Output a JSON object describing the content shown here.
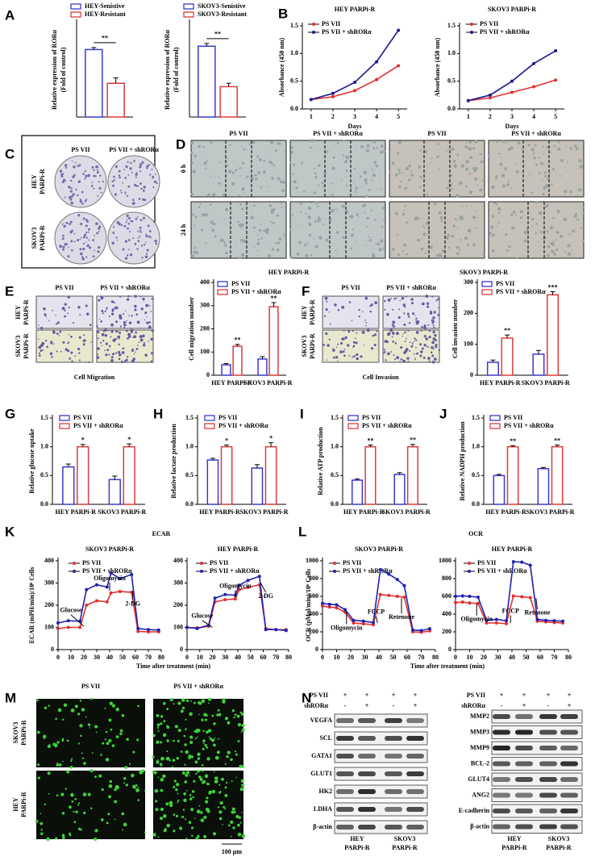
{
  "figure": {
    "panel_letters": [
      "A",
      "B",
      "C",
      "D",
      "E",
      "F",
      "G",
      "H",
      "I",
      "J",
      "K",
      "L",
      "M",
      "N"
    ],
    "colony": {
      "columns": [
        "PS VII",
        "PS VII + shRORα"
      ],
      "rows": [
        [
          "HEY",
          "PARPi-R"
        ],
        [
          "SKOV3",
          "PARPi-R"
        ]
      ]
    },
    "wound": {
      "columns": [
        "PS VII",
        "PS VII + shRORα",
        "PS VII",
        "PS VII + shRORα"
      ],
      "rows": [
        "0 h",
        "24 h"
      ],
      "groups": [
        "HEY PARPi-R",
        "SKOV3 PARPi-R"
      ]
    },
    "migration": {
      "columns": [
        "PS VII",
        "PS VII + shRORα"
      ],
      "rows": [
        [
          "HEY",
          "PARPi-R"
        ],
        [
          "SKOV3",
          "PARPi-R"
        ]
      ],
      "caption": "Cell Migration"
    },
    "invasion": {
      "columns": [
        "PS VII",
        "PS VII + shRORα"
      ],
      "rows": [
        [
          "HEY",
          "PARPi-R"
        ],
        [
          "SKOV3",
          "PARPi-R"
        ]
      ],
      "caption": "Cell Invasion"
    },
    "ecar_title": "ECAR",
    "ocr_title": "OCR",
    "time_label": "Time after treatment (min)",
    "fluorescence": {
      "columns": [
        "PS VII",
        "PS VII + shRORα"
      ],
      "rows": [
        [
          "SKOV3",
          "PARPi-R"
        ],
        [
          "HEY",
          "PARPi-R"
        ]
      ],
      "scale": "100 μm"
    },
    "blots": [
      {
        "conditions": [
          {
            "name": "PS VII",
            "marks": [
              "+",
              "+",
              "+",
              "+"
            ]
          },
          {
            "name": "shRORα",
            "marks": [
              "-",
              "+",
              "-",
              "+"
            ]
          }
        ],
        "proteins": [
          "VEGFA",
          "SCL",
          "GATA1",
          "GLUT1",
          "HK2",
          "LDHA",
          "β-actin"
        ],
        "groups": [
          [
            "HEY",
            "PARPi-R"
          ],
          [
            "SKOV3",
            "PARPi-R"
          ]
        ]
      },
      {
        "conditions": [
          {
            "name": "PS VII",
            "marks": [
              "+",
              "+",
              "+",
              "+"
            ]
          },
          {
            "name": "shRORα",
            "marks": [
              "-",
              "+",
              "-",
              "+"
            ]
          }
        ],
        "proteins": [
          "MMP2",
          "MMP3",
          "MMP9",
          "BCL-2",
          "GLUT4",
          "ANG2",
          "E-cadherin",
          "β-actin"
        ],
        "groups": [
          [
            "HEY",
            "PARPi-R"
          ],
          [
            "SKOV3",
            "PARPi-R"
          ]
        ]
      }
    ]
  },
  "chart_data": [
    {
      "type": "bar",
      "ylabel": [
        "Relative expression of RORα",
        "(Fold of control)"
      ],
      "ylim": [
        0,
        1.4
      ],
      "significance": [
        "**"
      ],
      "series": [
        {
          "name": "HEY-Senistive",
          "color": "#3a3ad0",
          "values": [
            1.0
          ],
          "errors": [
            0.03
          ]
        },
        {
          "name": "HEY-Resistant",
          "color": "#e03a3a",
          "values": [
            0.5
          ],
          "errors": [
            0.08
          ]
        }
      ]
    },
    {
      "type": "bar",
      "ylabel": [
        "Relative expression of RORα",
        "(Fold of control)"
      ],
      "ylim": [
        0,
        1.4
      ],
      "significance": [
        "**"
      ],
      "series": [
        {
          "name": "SKOV3-Senistive",
          "color": "#3a3ad0",
          "values": [
            1.05
          ],
          "errors": [
            0.04
          ]
        },
        {
          "name": "SKOV3-Resistant",
          "color": "#e03a3a",
          "values": [
            0.45
          ],
          "errors": [
            0.05
          ]
        }
      ]
    },
    {
      "type": "line",
      "title": "HEY PARPi-R",
      "xlabel": "Days",
      "ylabel": [
        "Absorbance (450 nm)"
      ],
      "x": [
        1,
        2,
        3,
        4,
        5
      ],
      "xlim": [
        0.6,
        5.4
      ],
      "xticks": [
        1,
        2,
        3,
        4,
        5
      ],
      "ylim": [
        0,
        1.5
      ],
      "yticks": [
        {
          "value": 0,
          "label": "0.0"
        },
        0.5,
        {
          "value": 1,
          "label": "1.0"
        },
        1.5
      ],
      "series": [
        {
          "name": "PS VII",
          "color": "#e03030",
          "values": [
            0.17,
            0.22,
            0.33,
            0.53,
            0.78
          ]
        },
        {
          "name": "PS VII + shRORα",
          "color": "#1a1a90",
          "values": [
            0.17,
            0.28,
            0.48,
            0.85,
            1.42
          ]
        }
      ]
    },
    {
      "type": "line",
      "title": "SKOV3 PARPi-R",
      "xlabel": "Days",
      "ylabel": [
        "Absorbance (450 nm)"
      ],
      "x": [
        1,
        2,
        3,
        4,
        5
      ],
      "xlim": [
        0.6,
        5.4
      ],
      "xticks": [
        1,
        2,
        3,
        4,
        5
      ],
      "ylim": [
        0,
        1.5
      ],
      "yticks": [
        {
          "value": 0,
          "label": "0.0"
        },
        0.5,
        {
          "value": 1,
          "label": "1.0"
        },
        1.5
      ],
      "series": [
        {
          "name": "PS VII",
          "color": "#e03030",
          "values": [
            0.15,
            0.2,
            0.3,
            0.4,
            0.52
          ]
        },
        {
          "name": "PS VII + shRORα",
          "color": "#1a1a90",
          "values": [
            0.15,
            0.25,
            0.5,
            0.82,
            1.05
          ]
        }
      ]
    },
    {
      "type": "bar",
      "ylabel": [
        "Cell migration number"
      ],
      "categories": [
        "HEY PARPi-R",
        "SKOV3 PARPi-R"
      ],
      "ylim": [
        0,
        400
      ],
      "yticks": [
        0,
        100,
        200,
        300,
        400
      ],
      "significance": [
        "**",
        "**"
      ],
      "series": [
        {
          "name": "PS VII",
          "color": "#3a3ad0",
          "values": [
            45,
            70
          ],
          "errors": [
            5,
            10
          ]
        },
        {
          "name": "PS VII + shRORα",
          "color": "#e03a3a",
          "values": [
            125,
            295
          ],
          "errors": [
            8,
            18
          ]
        }
      ]
    },
    {
      "type": "bar",
      "ylabel": [
        "Cell invasion number"
      ],
      "categories": [
        "HEY PARPi-R",
        "SKOV3 PARPi-R"
      ],
      "ylim": [
        0,
        300
      ],
      "yticks": [
        0,
        100,
        200,
        300
      ],
      "significance": [
        "**",
        "***"
      ],
      "series": [
        {
          "name": "PS VII",
          "color": "#3a3ad0",
          "values": [
            42,
            68
          ],
          "errors": [
            7,
            12
          ]
        },
        {
          "name": "PS VII + shRORα",
          "color": "#e03a3a",
          "values": [
            120,
            260
          ],
          "errors": [
            10,
            10
          ]
        }
      ]
    },
    {
      "type": "bar",
      "ylabel": [
        "Relative glucose uptake"
      ],
      "categories": [
        "HEY PARPi-R",
        "SKOV3 PARPi-R"
      ],
      "ylim": [
        0,
        1.5
      ],
      "yticks": [
        {
          "value": 0,
          "label": "0.0"
        },
        0.5,
        {
          "value": 1,
          "label": "1.0"
        },
        1.5
      ],
      "significance": [
        "*",
        "*"
      ],
      "series": [
        {
          "name": "PS VII",
          "color": "#3a3ad0",
          "values": [
            0.65,
            0.43
          ],
          "errors": [
            0.05,
            0.06
          ]
        },
        {
          "name": "PS VII + shRORα",
          "color": "#e03a3a",
          "values": [
            1,
            1
          ],
          "errors": [
            0.04,
            0.05
          ]
        }
      ]
    },
    {
      "type": "bar",
      "ylabel": [
        "Relative lactate production"
      ],
      "categories": [
        "HEY PARPi-R",
        "SKOV3 PARPi-R"
      ],
      "ylim": [
        0,
        1.5
      ],
      "yticks": [
        {
          "value": 0,
          "label": "0.0"
        },
        0.5,
        {
          "value": 1,
          "label": "1.0"
        },
        1.5
      ],
      "significance": [
        "*",
        "*"
      ],
      "series": [
        {
          "name": "PS VII",
          "color": "#3a3ad0",
          "values": [
            0.77,
            0.63
          ],
          "errors": [
            0.03,
            0.06
          ]
        },
        {
          "name": "PS VII + shRORα",
          "color": "#e03a3a",
          "values": [
            1,
            1
          ],
          "errors": [
            0.03,
            0.07
          ]
        }
      ]
    },
    {
      "type": "bar",
      "ylabel": [
        "Relative ATP production"
      ],
      "categories": [
        "HEY PARPi-R",
        "SKOV3 PARPi-R"
      ],
      "ylim": [
        0,
        1.5
      ],
      "yticks": [
        {
          "value": 0,
          "label": "0.0"
        },
        0.5,
        {
          "value": 1,
          "label": "1.0"
        },
        1.5
      ],
      "significance": [
        "**",
        "**"
      ],
      "series": [
        {
          "name": "PS VII",
          "color": "#3a3ad0",
          "values": [
            0.42,
            0.52
          ],
          "errors": [
            0.02,
            0.03
          ]
        },
        {
          "name": "PS VII + shRORα",
          "color": "#e03a3a",
          "values": [
            1,
            1
          ],
          "errors": [
            0.03,
            0.04
          ]
        }
      ]
    },
    {
      "type": "bar",
      "ylabel": [
        "Relative NADPH production"
      ],
      "categories": [
        "HEY PARPi-R",
        "SKOV3 PARPi-R"
      ],
      "ylim": [
        0,
        1.5
      ],
      "yticks": [
        {
          "value": 0,
          "label": "0.0"
        },
        0.5,
        {
          "value": 1,
          "label": "1.0"
        },
        1.5
      ],
      "significance": [
        "**",
        "**"
      ],
      "series": [
        {
          "name": "PS VII",
          "color": "#3a3ad0",
          "values": [
            0.5,
            0.62
          ],
          "errors": [
            0.02,
            0.02
          ]
        },
        {
          "name": "PS VII + shRORα",
          "color": "#e03a3a",
          "values": [
            1,
            1
          ],
          "errors": [
            0.02,
            0.03
          ]
        }
      ]
    },
    {
      "type": "line",
      "title": "SKOV3 PARPi-R",
      "ylabel": [
        "ECAR (mPH/min)/10⁶ Cells"
      ],
      "x": [
        0,
        8,
        17,
        22,
        30,
        38,
        41,
        48,
        57,
        62,
        70,
        78
      ],
      "xlim": [
        0,
        80
      ],
      "xticks": [
        0,
        10,
        20,
        30,
        40,
        50,
        60,
        70,
        80
      ],
      "ylim": [
        0,
        400
      ],
      "yticks": [
        0,
        100,
        200,
        300,
        400
      ],
      "annotations": [
        "Glucose",
        "Oligomycin",
        "2-DG"
      ],
      "series": [
        {
          "name": "PS VII",
          "color": "#e03030",
          "values": [
            95,
            100,
            100,
            200,
            220,
            215,
            255,
            262,
            258,
            82,
            80,
            80
          ]
        },
        {
          "name": "PS VII + shRORα",
          "color": "#2020b0",
          "values": [
            120,
            130,
            128,
            270,
            292,
            282,
            345,
            320,
            338,
            95,
            90,
            88
          ]
        }
      ]
    },
    {
      "type": "line",
      "title": "HEY PARPi-R",
      "x": [
        0,
        8,
        17,
        22,
        30,
        38,
        41,
        48,
        57,
        62,
        70,
        78
      ],
      "xlim": [
        0,
        80
      ],
      "xticks": [
        0,
        10,
        20,
        30,
        40,
        50,
        60,
        70,
        80
      ],
      "ylim": [
        0,
        400
      ],
      "yticks": [
        0,
        100,
        200,
        300,
        400
      ],
      "annotations": [
        "Glucose",
        "Oligomycin",
        "2-DG"
      ],
      "series": [
        {
          "name": "PS VII",
          "color": "#e03030",
          "values": [
            100,
            98,
            105,
            215,
            225,
            228,
            270,
            280,
            292,
            95,
            90,
            90
          ]
        },
        {
          "name": "PS VII + shRORα",
          "color": "#2020b0",
          "values": [
            100,
            95,
            110,
            232,
            248,
            245,
            290,
            312,
            330,
            90,
            90,
            86
          ]
        }
      ]
    },
    {
      "type": "line",
      "title": "SKOV3 PARPi-R",
      "ylabel": [
        "OCR (pMol/min)/10⁶ Cells"
      ],
      "x": [
        0,
        5,
        10,
        16,
        22,
        29,
        36,
        41,
        47,
        53,
        58,
        64,
        70,
        76
      ],
      "xlim": [
        0,
        80
      ],
      "xticks": [
        0,
        10,
        20,
        30,
        40,
        50,
        60,
        70,
        80
      ],
      "ylim": [
        0,
        1000
      ],
      "yticks": [
        0,
        200,
        400,
        600,
        800,
        1000
      ],
      "annotations": [
        "Oligomycin",
        "FCCP",
        "Retenone"
      ],
      "series": [
        {
          "name": "PS VII",
          "color": "#e03030",
          "values": [
            490,
            480,
            470,
            420,
            300,
            290,
            280,
            620,
            610,
            600,
            590,
            200,
            195,
            210
          ]
        },
        {
          "name": "PS VII + shRORα",
          "color": "#2020b0",
          "values": [
            520,
            510,
            505,
            450,
            330,
            320,
            305,
            900,
            850,
            790,
            720,
            220,
            215,
            235
          ]
        }
      ]
    },
    {
      "type": "line",
      "title": "HEY PARPi-R",
      "x": [
        0,
        5,
        10,
        16,
        22,
        29,
        36,
        41,
        47,
        53,
        58,
        64,
        70,
        76
      ],
      "xlim": [
        0,
        80
      ],
      "xticks": [
        0,
        10,
        20,
        30,
        40,
        50,
        60,
        70,
        80
      ],
      "ylim": [
        0,
        1000
      ],
      "yticks": [
        0,
        200,
        400,
        600,
        800,
        1000
      ],
      "annotations": [
        "Oligomycin",
        "FCCP",
        "Retenone"
      ],
      "series": [
        {
          "name": "PS VII",
          "color": "#e03030",
          "values": [
            530,
            535,
            525,
            520,
            300,
            300,
            292,
            605,
            595,
            585,
            320,
            312,
            305,
            300
          ]
        },
        {
          "name": "PS VII + shRORα",
          "color": "#2020b0",
          "values": [
            600,
            605,
            600,
            590,
            330,
            340,
            325,
            990,
            985,
            950,
            340,
            330,
            325,
            320
          ]
        }
      ]
    }
  ]
}
